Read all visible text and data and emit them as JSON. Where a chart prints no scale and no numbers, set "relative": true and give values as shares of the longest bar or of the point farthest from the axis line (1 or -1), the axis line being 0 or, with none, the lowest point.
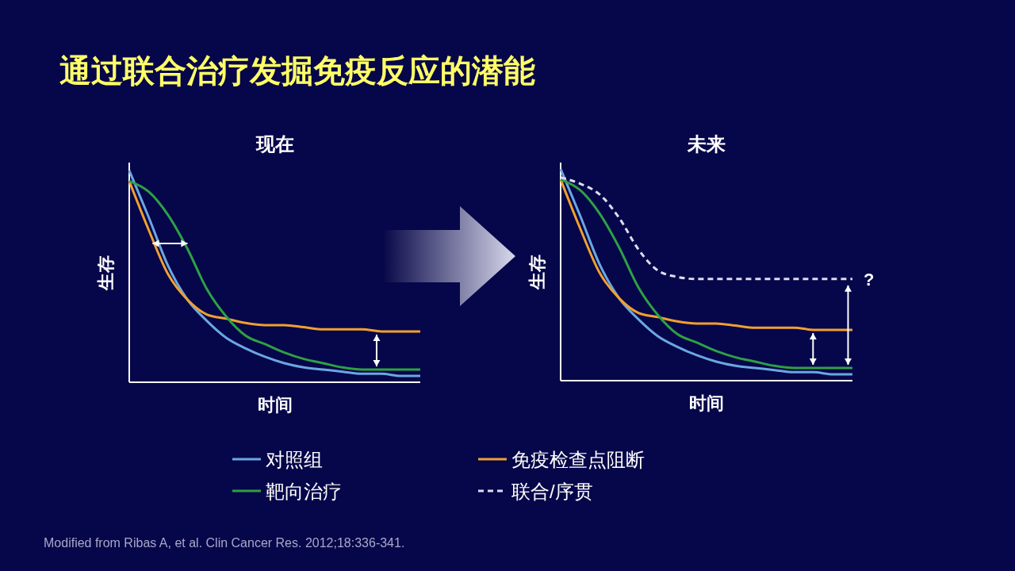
{
  "chart_data": [
    {
      "type": "line",
      "title": "现在",
      "xlabel": "时间",
      "ylabel": "生存",
      "relative": true,
      "legend": "bottom",
      "annotations": [
        "通过联合治疗发掘免疫反应的潜能",
        "Modified from Ribas A, et al. Clin Cancer Res. 2012;18:336-341."
      ],
      "categories": [
        null,
        null,
        null,
        null,
        null,
        null,
        null,
        null,
        null,
        null,
        null,
        null,
        null,
        null,
        null,
        null
      ],
      "series": [
        {
          "name": "对照组",
          "color": "#6aa7e0",
          "values": [
            1.0,
            0.78,
            0.55,
            0.39,
            0.29,
            0.21,
            0.16,
            0.12,
            0.09,
            0.07,
            0.06,
            0.05,
            0.04,
            0.04,
            0.03,
            0.03
          ]
        },
        {
          "name": "免疫检查点阻断",
          "color": "#f0a030",
          "values": [
            0.95,
            0.72,
            0.51,
            0.39,
            0.32,
            0.3,
            0.28,
            0.27,
            0.27,
            0.26,
            0.25,
            0.25,
            0.25,
            0.24,
            0.24,
            0.24
          ]
        },
        {
          "name": "靶向治疗",
          "color": "#2ea043",
          "values": [
            0.95,
            0.9,
            0.79,
            0.63,
            0.44,
            0.31,
            0.22,
            0.18,
            0.14,
            0.11,
            0.09,
            0.07,
            0.06,
            0.06,
            0.06,
            0.06
          ]
        }
      ]
    },
    {
      "type": "line",
      "title": "未来",
      "xlabel": "时间",
      "ylabel": "生存",
      "relative": true,
      "legend": "bottom",
      "annotations": [
        "?"
      ],
      "categories": [
        null,
        null,
        null,
        null,
        null,
        null,
        null,
        null,
        null,
        null,
        null,
        null,
        null,
        null,
        null,
        null
      ],
      "series": [
        {
          "color": "#6aa7e0",
          "values": [
            1.0,
            0.78,
            0.55,
            0.39,
            0.29,
            0.21,
            0.16,
            0.12,
            0.09,
            0.07,
            0.06,
            0.05,
            0.04,
            0.04,
            0.03,
            0.03
          ]
        },
        {
          "color": "#f0a030",
          "values": [
            0.95,
            0.72,
            0.51,
            0.39,
            0.32,
            0.3,
            0.28,
            0.27,
            0.27,
            0.26,
            0.25,
            0.25,
            0.25,
            0.24,
            0.24,
            0.24
          ]
        },
        {
          "color": "#2ea043",
          "values": [
            0.95,
            0.9,
            0.79,
            0.63,
            0.44,
            0.31,
            0.22,
            0.18,
            0.14,
            0.11,
            0.09,
            0.07,
            0.06,
            0.06,
            0.06,
            0.06
          ]
        },
        {
          "name": "联合/序贯",
          "color": "#dcdcf0",
          "line_style": "dashed",
          "values": [
            0.96,
            0.93,
            0.88,
            0.77,
            0.62,
            0.52,
            0.49,
            0.48,
            0.48,
            0.48,
            0.48,
            0.48,
            0.48,
            0.48,
            0.48,
            0.48
          ]
        }
      ]
    }
  ]
}
